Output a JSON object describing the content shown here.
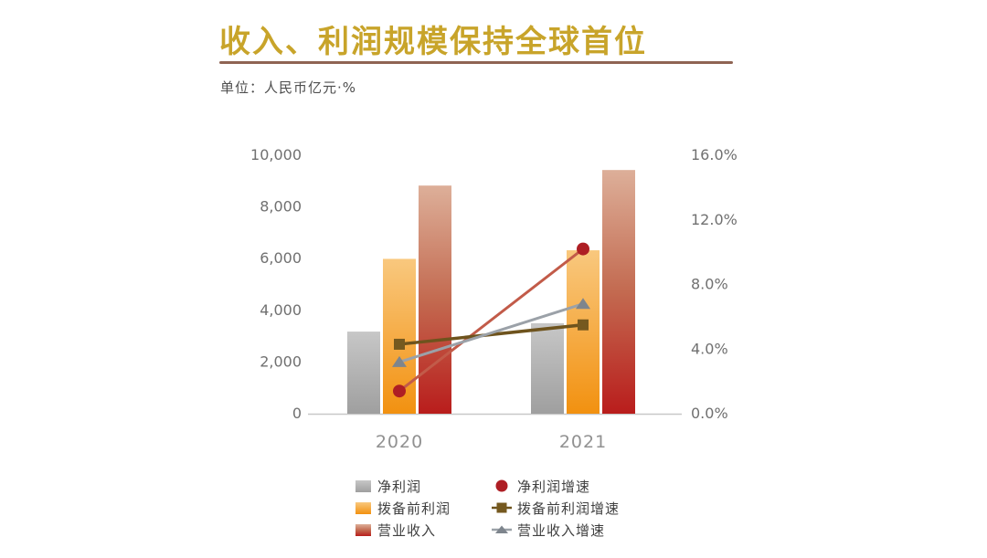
{
  "slide": {
    "title": "收入、利润规模保持全球首位",
    "unit_note": "单位：人民币亿元·%"
  },
  "colors": {
    "background": "#FFFFFF",
    "title_text": "#C8A42A",
    "title_rule": "#8F6453",
    "unit_text": "#4F4F4F",
    "axis_text": "#707070",
    "category_text": "#919191",
    "legend_text": "#3F3F3F",
    "axis_line": "#C8C8C8"
  },
  "chart_data": {
    "type": "combo-bar-line",
    "title": "收入、利润规模保持全球首位",
    "unit": "人民币亿元, %",
    "categories": [
      "2020",
      "2021"
    ],
    "bar_series": [
      {
        "key": "net-profit",
        "name": "净利润",
        "values": [
          3177,
          3502
        ],
        "axis": "left",
        "gradient": [
          "#C7C7C7",
          "#9F9F9F"
        ]
      },
      {
        "key": "pre-provision-profit",
        "name": "拨备前利润",
        "values": [
          5991,
          6324
        ],
        "axis": "left",
        "gradient": [
          "#F9C87E",
          "#F29110"
        ]
      },
      {
        "key": "operating-revenue",
        "name": "营业收入",
        "values": [
          8827,
          9429
        ],
        "axis": "left",
        "gradient": [
          "#DDAF99",
          "#C36A50",
          "#B91D1C"
        ]
      }
    ],
    "line_series": [
      {
        "key": "net-profit-growth",
        "name": "净利润增速",
        "values": [
          1.4,
          10.2
        ],
        "axis": "right",
        "line_color": "#C25B49",
        "line_width": 3,
        "marker": "circle",
        "marker_color": "#AE1E24"
      },
      {
        "key": "pre-provision-profit-growth",
        "name": "拨备前利润增速",
        "values": [
          4.3,
          5.5
        ],
        "axis": "right",
        "line_color": "#6E531D",
        "line_width": 3.5,
        "marker": "square",
        "marker_color": "#75591F"
      },
      {
        "key": "operating-revenue-growth",
        "name": "营业收入增速",
        "values": [
          3.2,
          6.8
        ],
        "axis": "right",
        "line_color": "#9BA1A8",
        "line_width": 3,
        "marker": "triangle",
        "marker_color": "#7E858D"
      }
    ],
    "left_axis": {
      "tick_labels": [
        "0",
        "2,000",
        "4,000",
        "6,000",
        "8,000",
        "10,000"
      ],
      "tick_values": [
        0,
        2000,
        4000,
        6000,
        8000,
        10000
      ],
      "min": 0,
      "max": 10000
    },
    "right_axis": {
      "tick_labels": [
        "0.0%",
        "4.0%",
        "8.0%",
        "12.0%",
        "16.0%"
      ],
      "tick_values": [
        0,
        4,
        8,
        12,
        16
      ],
      "min": 0,
      "max": 16
    },
    "grid": false,
    "legend_position": "bottom"
  }
}
